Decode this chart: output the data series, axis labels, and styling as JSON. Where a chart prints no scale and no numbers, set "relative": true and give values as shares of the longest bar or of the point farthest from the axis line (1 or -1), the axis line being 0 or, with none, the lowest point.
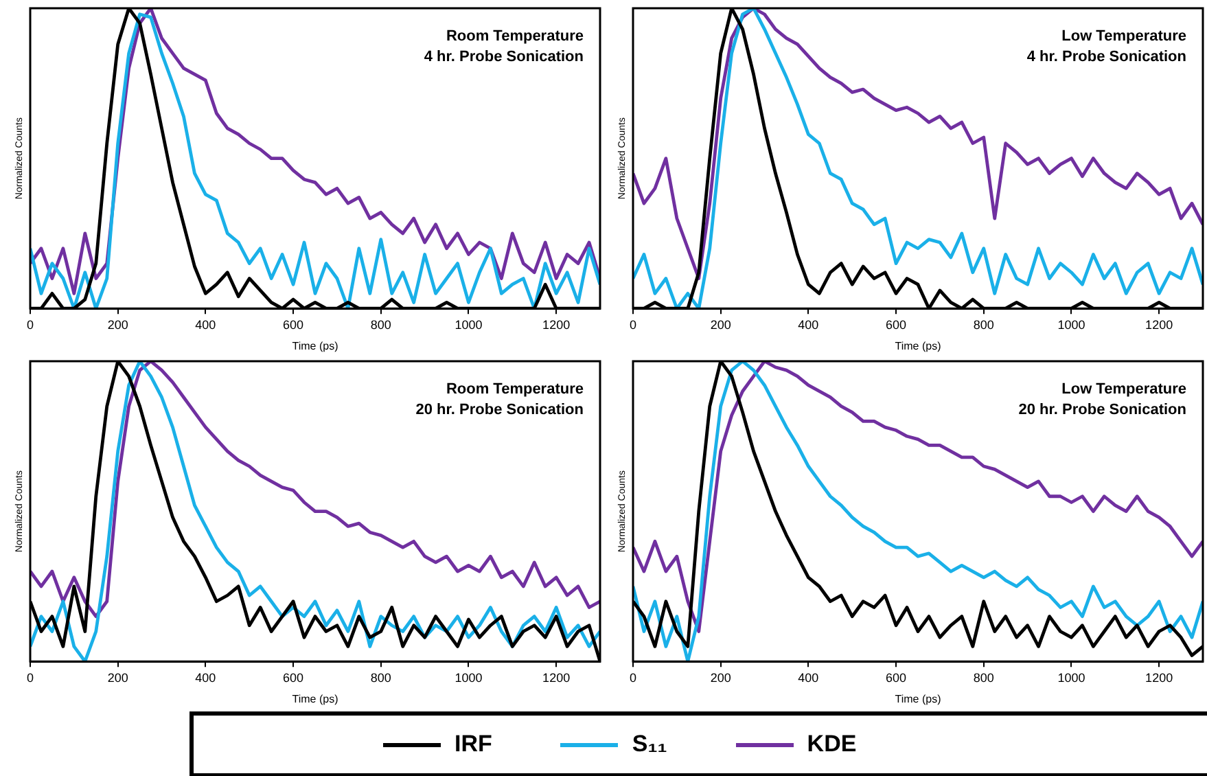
{
  "chart_data": [
    {
      "type": "line",
      "title": "Room Temperature",
      "subtitle": "4 hr. Probe Sonication",
      "xlabel": "Time (ps)",
      "ylabel": "Normalized Counts",
      "relative": true,
      "legend": "bottom",
      "xlim": [
        0,
        1300
      ],
      "xticks": [
        0,
        200,
        400,
        600,
        800,
        1000,
        1200
      ],
      "x": [
        0,
        25,
        50,
        75,
        100,
        125,
        150,
        175,
        200,
        225,
        250,
        275,
        300,
        325,
        350,
        375,
        400,
        425,
        450,
        475,
        500,
        525,
        550,
        575,
        600,
        625,
        650,
        675,
        700,
        725,
        750,
        775,
        800,
        825,
        850,
        875,
        900,
        925,
        950,
        975,
        1000,
        1025,
        1050,
        1075,
        1100,
        1125,
        1150,
        1175,
        1200,
        1225,
        1250,
        1275,
        1300
      ],
      "series": [
        {
          "name": "IRF",
          "color": "#000000",
          "values": [
            0,
            0,
            0.05,
            0,
            0,
            0.03,
            0.15,
            0.55,
            0.88,
            1,
            0.95,
            0.78,
            0.6,
            0.42,
            0.28,
            0.14,
            0.05,
            0.08,
            0.12,
            0.04,
            0.1,
            0.06,
            0.02,
            0,
            0.03,
            0,
            0.02,
            0,
            0,
            0.02,
            0,
            0,
            0,
            0.03,
            0,
            0,
            0,
            0,
            0.02,
            0,
            0,
            0,
            0,
            0,
            0,
            0,
            0,
            0.08,
            0,
            0,
            0,
            0,
            0
          ]
        },
        {
          "name": "S₁₁",
          "color": "#1ab0e8",
          "values": [
            0.2,
            0.05,
            0.15,
            0.1,
            0,
            0.12,
            0,
            0.1,
            0.55,
            0.85,
            0.98,
            0.97,
            0.85,
            0.75,
            0.64,
            0.45,
            0.38,
            0.36,
            0.25,
            0.22,
            0.15,
            0.2,
            0.1,
            0.18,
            0.08,
            0.22,
            0.05,
            0.15,
            0.1,
            0,
            0.2,
            0.05,
            0.23,
            0.05,
            0.12,
            0.02,
            0.18,
            0.05,
            0.1,
            0.15,
            0.02,
            0.12,
            0.2,
            0.05,
            0.08,
            0.1,
            0,
            0.15,
            0.05,
            0.12,
            0.02,
            0.2,
            0.08
          ]
        },
        {
          "name": "KDE",
          "color": "#7030a0",
          "values": [
            0.15,
            0.2,
            0.1,
            0.2,
            0.05,
            0.25,
            0.1,
            0.15,
            0.5,
            0.8,
            0.95,
            1,
            0.9,
            0.85,
            0.8,
            0.78,
            0.76,
            0.65,
            0.6,
            0.58,
            0.55,
            0.53,
            0.5,
            0.5,
            0.46,
            0.43,
            0.42,
            0.38,
            0.4,
            0.35,
            0.37,
            0.3,
            0.32,
            0.28,
            0.25,
            0.3,
            0.22,
            0.28,
            0.2,
            0.25,
            0.18,
            0.22,
            0.2,
            0.1,
            0.25,
            0.15,
            0.12,
            0.22,
            0.1,
            0.18,
            0.15,
            0.22,
            0.1
          ]
        }
      ]
    },
    {
      "type": "line",
      "title": "Low Temperature",
      "subtitle": "4 hr. Probe Sonication",
      "xlabel": "Time (ps)",
      "ylabel": "Normalized Counts",
      "relative": true,
      "xlim": [
        0,
        1300
      ],
      "xticks": [
        0,
        200,
        400,
        600,
        800,
        1000,
        1200
      ],
      "x": [
        0,
        25,
        50,
        75,
        100,
        125,
        150,
        175,
        200,
        225,
        250,
        275,
        300,
        325,
        350,
        375,
        400,
        425,
        450,
        475,
        500,
        525,
        550,
        575,
        600,
        625,
        650,
        675,
        700,
        725,
        750,
        775,
        800,
        825,
        850,
        875,
        900,
        925,
        950,
        975,
        1000,
        1025,
        1050,
        1075,
        1100,
        1125,
        1150,
        1175,
        1200,
        1225,
        1250,
        1275,
        1300
      ],
      "series": [
        {
          "color": "#000000",
          "values": [
            0,
            0,
            0.02,
            0,
            0,
            0,
            0.12,
            0.5,
            0.85,
            1,
            0.93,
            0.78,
            0.6,
            0.45,
            0.32,
            0.18,
            0.08,
            0.05,
            0.12,
            0.15,
            0.08,
            0.14,
            0.1,
            0.12,
            0.05,
            0.1,
            0.08,
            0,
            0.06,
            0.02,
            0,
            0.03,
            0,
            0,
            0,
            0.02,
            0,
            0,
            0,
            0,
            0,
            0.02,
            0,
            0,
            0,
            0,
            0,
            0,
            0.02,
            0,
            0,
            0,
            0
          ]
        },
        {
          "color": "#1ab0e8",
          "values": [
            0.1,
            0.18,
            0.05,
            0.1,
            0,
            0.05,
            0,
            0.2,
            0.55,
            0.85,
            0.98,
            1,
            0.93,
            0.85,
            0.77,
            0.68,
            0.58,
            0.55,
            0.45,
            0.43,
            0.35,
            0.33,
            0.28,
            0.3,
            0.15,
            0.22,
            0.2,
            0.23,
            0.22,
            0.17,
            0.25,
            0.12,
            0.2,
            0.05,
            0.18,
            0.1,
            0.08,
            0.2,
            0.1,
            0.15,
            0.12,
            0.08,
            0.18,
            0.1,
            0.15,
            0.05,
            0.12,
            0.15,
            0.05,
            0.12,
            0.1,
            0.2,
            0.08
          ]
        },
        {
          "color": "#7030a0",
          "values": [
            0.45,
            0.35,
            0.4,
            0.5,
            0.3,
            0.2,
            0.1,
            0.35,
            0.7,
            0.9,
            0.97,
            1,
            0.98,
            0.93,
            0.9,
            0.88,
            0.84,
            0.8,
            0.77,
            0.75,
            0.72,
            0.73,
            0.7,
            0.68,
            0.66,
            0.67,
            0.65,
            0.62,
            0.64,
            0.6,
            0.62,
            0.55,
            0.57,
            0.3,
            0.55,
            0.52,
            0.48,
            0.5,
            0.45,
            0.48,
            0.5,
            0.44,
            0.5,
            0.45,
            0.42,
            0.4,
            0.45,
            0.42,
            0.38,
            0.4,
            0.3,
            0.35,
            0.28
          ]
        }
      ]
    },
    {
      "type": "line",
      "title": "Room Temperature",
      "subtitle": "20 hr. Probe Sonication",
      "xlabel": "Time (ps)",
      "ylabel": "Normalized Counts",
      "relative": true,
      "xlim": [
        0,
        1300
      ],
      "xticks": [
        0,
        200,
        400,
        600,
        800,
        1000,
        1200
      ],
      "x": [
        0,
        25,
        50,
        75,
        100,
        125,
        150,
        175,
        200,
        225,
        250,
        275,
        300,
        325,
        350,
        375,
        400,
        425,
        450,
        475,
        500,
        525,
        550,
        575,
        600,
        625,
        650,
        675,
        700,
        725,
        750,
        775,
        800,
        825,
        850,
        875,
        900,
        925,
        950,
        975,
        1000,
        1025,
        1050,
        1075,
        1100,
        1125,
        1150,
        1175,
        1200,
        1225,
        1250,
        1275,
        1300
      ],
      "series": [
        {
          "color": "#000000",
          "values": [
            0.2,
            0.1,
            0.15,
            0.05,
            0.25,
            0.1,
            0.55,
            0.85,
            1,
            0.95,
            0.85,
            0.72,
            0.6,
            0.48,
            0.4,
            0.35,
            0.28,
            0.2,
            0.22,
            0.25,
            0.12,
            0.18,
            0.1,
            0.15,
            0.2,
            0.08,
            0.15,
            0.1,
            0.12,
            0.05,
            0.15,
            0.08,
            0.1,
            0.18,
            0.05,
            0.12,
            0.08,
            0.15,
            0.1,
            0.05,
            0.14,
            0.08,
            0.12,
            0.15,
            0.05,
            0.1,
            0.12,
            0.08,
            0.15,
            0.05,
            0.1,
            0.12,
            0
          ]
        },
        {
          "color": "#1ab0e8",
          "values": [
            0.05,
            0.15,
            0.1,
            0.2,
            0.05,
            0,
            0.1,
            0.35,
            0.7,
            0.92,
            1,
            0.95,
            0.88,
            0.78,
            0.65,
            0.52,
            0.45,
            0.38,
            0.33,
            0.3,
            0.22,
            0.25,
            0.2,
            0.15,
            0.18,
            0.15,
            0.2,
            0.12,
            0.17,
            0.1,
            0.2,
            0.05,
            0.15,
            0.12,
            0.1,
            0.15,
            0.08,
            0.12,
            0.1,
            0.15,
            0.08,
            0.12,
            0.18,
            0.1,
            0.05,
            0.12,
            0.15,
            0.1,
            0.18,
            0.08,
            0.12,
            0.05,
            0.1
          ]
        },
        {
          "color": "#7030a0",
          "values": [
            0.3,
            0.25,
            0.3,
            0.2,
            0.28,
            0.2,
            0.15,
            0.2,
            0.6,
            0.85,
            0.97,
            1,
            0.97,
            0.93,
            0.88,
            0.83,
            0.78,
            0.74,
            0.7,
            0.67,
            0.65,
            0.62,
            0.6,
            0.58,
            0.57,
            0.53,
            0.5,
            0.5,
            0.48,
            0.45,
            0.46,
            0.43,
            0.42,
            0.4,
            0.38,
            0.4,
            0.35,
            0.33,
            0.35,
            0.3,
            0.32,
            0.3,
            0.35,
            0.28,
            0.3,
            0.25,
            0.33,
            0.25,
            0.28,
            0.22,
            0.25,
            0.18,
            0.2
          ]
        }
      ]
    },
    {
      "type": "line",
      "title": "Low Temperature",
      "subtitle": "20 hr. Probe Sonication",
      "xlabel": "Time (ps)",
      "ylabel": "Normalized Counts",
      "relative": true,
      "xlim": [
        0,
        1300
      ],
      "xticks": [
        0,
        200,
        400,
        600,
        800,
        1000,
        1200
      ],
      "x": [
        0,
        25,
        50,
        75,
        100,
        125,
        150,
        175,
        200,
        225,
        250,
        275,
        300,
        325,
        350,
        375,
        400,
        425,
        450,
        475,
        500,
        525,
        550,
        575,
        600,
        625,
        650,
        675,
        700,
        725,
        750,
        775,
        800,
        825,
        850,
        875,
        900,
        925,
        950,
        975,
        1000,
        1025,
        1050,
        1075,
        1100,
        1125,
        1150,
        1175,
        1200,
        1225,
        1250,
        1275,
        1300
      ],
      "series": [
        {
          "color": "#000000",
          "values": [
            0.2,
            0.15,
            0.05,
            0.2,
            0.1,
            0.05,
            0.5,
            0.85,
            1,
            0.95,
            0.83,
            0.7,
            0.6,
            0.5,
            0.42,
            0.35,
            0.28,
            0.25,
            0.2,
            0.22,
            0.15,
            0.2,
            0.18,
            0.22,
            0.12,
            0.18,
            0.1,
            0.15,
            0.08,
            0.12,
            0.15,
            0.05,
            0.2,
            0.1,
            0.15,
            0.08,
            0.12,
            0.05,
            0.15,
            0.1,
            0.08,
            0.12,
            0.05,
            0.1,
            0.15,
            0.08,
            0.12,
            0.05,
            0.1,
            0.12,
            0.08,
            0.02,
            0.05
          ]
        },
        {
          "color": "#1ab0e8",
          "values": [
            0.25,
            0.1,
            0.2,
            0.05,
            0.15,
            0,
            0.15,
            0.55,
            0.85,
            0.97,
            1,
            0.97,
            0.92,
            0.85,
            0.78,
            0.72,
            0.65,
            0.6,
            0.55,
            0.52,
            0.48,
            0.45,
            0.43,
            0.4,
            0.38,
            0.38,
            0.35,
            0.36,
            0.33,
            0.3,
            0.32,
            0.3,
            0.28,
            0.3,
            0.27,
            0.25,
            0.28,
            0.24,
            0.22,
            0.18,
            0.2,
            0.15,
            0.25,
            0.18,
            0.2,
            0.15,
            0.12,
            0.15,
            0.2,
            0.1,
            0.15,
            0.08,
            0.2
          ]
        },
        {
          "color": "#7030a0",
          "values": [
            0.38,
            0.3,
            0.4,
            0.3,
            0.35,
            0.2,
            0.1,
            0.4,
            0.7,
            0.82,
            0.9,
            0.95,
            1,
            0.98,
            0.97,
            0.95,
            0.92,
            0.9,
            0.88,
            0.85,
            0.83,
            0.8,
            0.8,
            0.78,
            0.77,
            0.75,
            0.74,
            0.72,
            0.72,
            0.7,
            0.68,
            0.68,
            0.65,
            0.64,
            0.62,
            0.6,
            0.58,
            0.6,
            0.55,
            0.55,
            0.53,
            0.55,
            0.5,
            0.55,
            0.52,
            0.5,
            0.55,
            0.5,
            0.48,
            0.45,
            0.4,
            0.35,
            0.4
          ]
        }
      ]
    }
  ]
}
